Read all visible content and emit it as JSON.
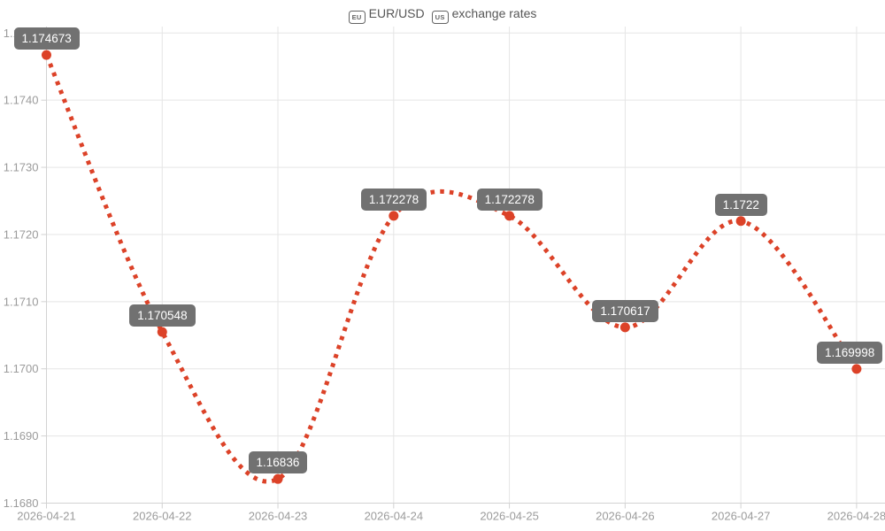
{
  "title": {
    "eu_flag_label": "EU",
    "pair": "EUR/USD",
    "us_flag_label": "US",
    "suffix": "exchange rates"
  },
  "chart_data": {
    "type": "line",
    "title": "[EU] EUR/USD [US] exchange rates",
    "series_name": "EUR/USD",
    "x": [
      "2026-04-21",
      "2026-04-22",
      "2026-04-23",
      "2026-04-24",
      "2026-04-25",
      "2026-04-26",
      "2026-04-27",
      "2026-04-28"
    ],
    "values": [
      1.174673,
      1.170548,
      1.16836,
      1.172278,
      1.172278,
      1.170617,
      1.1722,
      1.169998
    ],
    "point_labels": [
      "1.174673",
      "1.170548",
      "1.16836",
      "1.172278",
      "1.172278",
      "1.170617",
      "1.1722",
      "1.169998"
    ],
    "ylim": [
      1.168,
      1.175
    ],
    "ytick_values": [
      1.168,
      1.169,
      1.17,
      1.171,
      1.172,
      1.173,
      1.174,
      1.175
    ],
    "ytick_labels": [
      "1.1680",
      "1.1690",
      "1.1700",
      "1.1710",
      "1.1720",
      "1.1730",
      "1.1740",
      "1.1750"
    ],
    "grid": true,
    "legend_position": "none",
    "line_style": "dotted",
    "curve": "smooth",
    "colors": {
      "line": "#dc4228",
      "marker": "#dc4228",
      "label_bg": "#717171",
      "label_text": "#ffffff",
      "grid": "#e5e5e5",
      "axis": "#d2d2d2",
      "tick_text": "#9b9b9b",
      "title_text": "#565656"
    }
  }
}
